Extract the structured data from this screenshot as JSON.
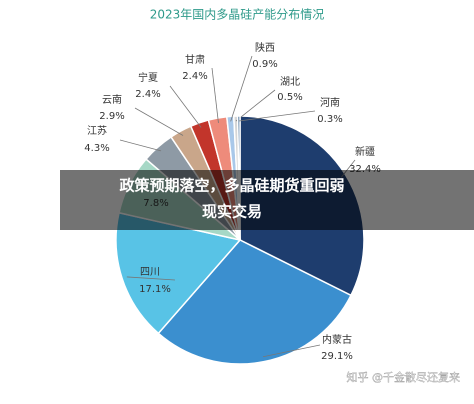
{
  "chart_data": {
    "type": "pie",
    "title": "2023年国内多晶硅产能分布情况",
    "categories": [
      "新疆",
      "内蒙古",
      "四川",
      null,
      "江苏",
      "云南",
      "宁夏",
      "甘肃",
      "陕西",
      "湖北",
      "河南"
    ],
    "values": [
      32.4,
      29.1,
      17.1,
      7.8,
      4.3,
      2.9,
      2.4,
      2.4,
      0.9,
      0.5,
      0.3
    ],
    "value_labels": [
      "32.4%",
      "29.1%",
      "17.1%",
      "7.8%",
      "4.3%",
      "2.9%",
      "2.4%",
      "2.4%",
      "0.9%",
      "0.5%",
      "0.3%"
    ],
    "colors": [
      "#1e3d6e",
      "#3b8fcf",
      "#58c3e6",
      "#a6d8c6",
      "#8e9aa5",
      "#c9a68a",
      "#c2352b",
      "#ee8b7b",
      "#a9c8e9",
      "#d6d6d6",
      "#2e5c88"
    ]
  },
  "banner": {
    "lines": [
      "政策预期落空，多晶硅期货重回弱",
      "现实交易"
    ]
  },
  "watermark": "知乎 @千金散尽还复来"
}
